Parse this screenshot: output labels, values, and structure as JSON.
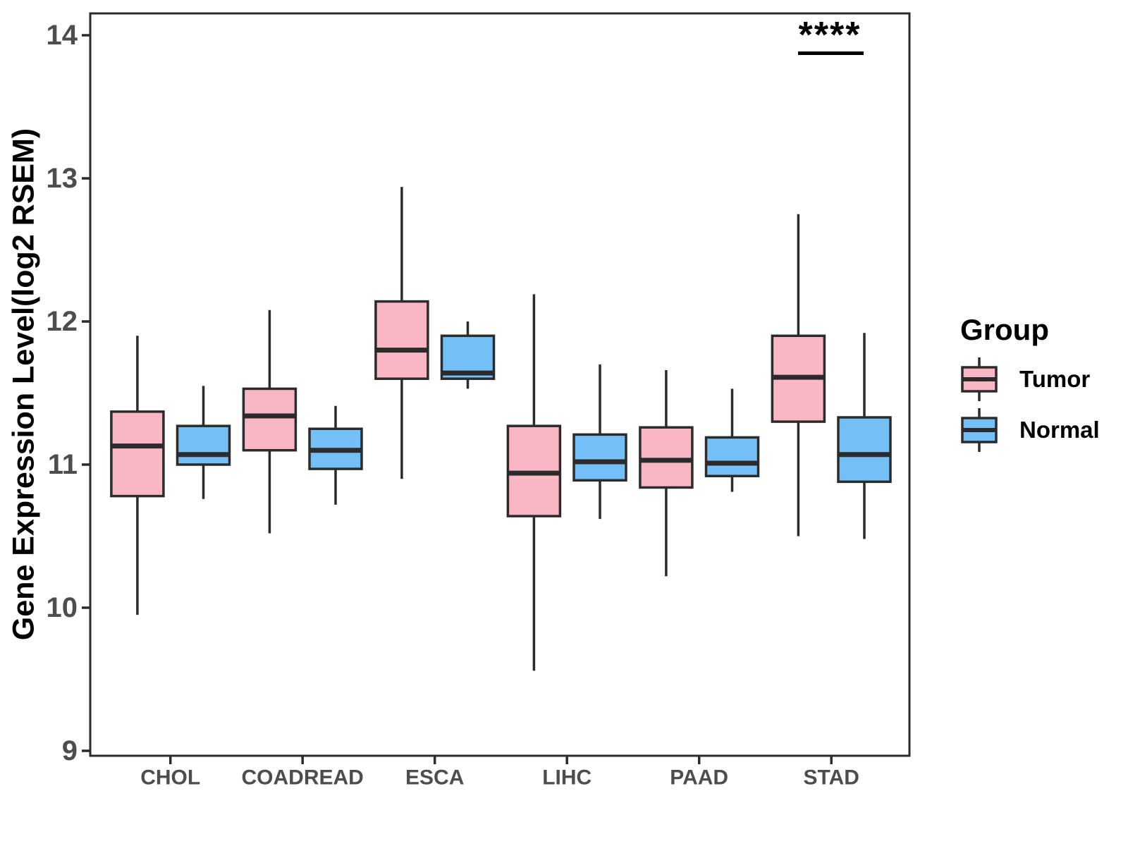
{
  "chart_data": {
    "type": "boxplot",
    "title": "",
    "xlabel": "",
    "ylabel": "Gene Expression Level(log2 RSEM)",
    "ylim": [
      9,
      14.15
    ],
    "yticks": [
      9,
      10,
      11,
      12,
      13,
      14
    ],
    "grid": false,
    "categories": [
      "CHOL",
      "COADREAD",
      "ESCA",
      "LIHC",
      "PAAD",
      "STAD"
    ],
    "legend": {
      "title": "Group",
      "position": "right",
      "entries": [
        "Tumor",
        "Normal"
      ]
    },
    "series": [
      {
        "name": "Tumor",
        "color": "#F9B6C3",
        "boxes": [
          {
            "category": "CHOL",
            "low": 9.95,
            "q1": 10.78,
            "median": 11.13,
            "q3": 11.37,
            "high": 11.9
          },
          {
            "category": "COADREAD",
            "low": 10.52,
            "q1": 11.1,
            "median": 11.34,
            "q3": 11.53,
            "high": 12.08
          },
          {
            "category": "ESCA",
            "low": 10.9,
            "q1": 11.6,
            "median": 11.8,
            "q3": 12.14,
            "high": 12.94
          },
          {
            "category": "LIHC",
            "low": 9.56,
            "q1": 10.64,
            "median": 10.94,
            "q3": 11.27,
            "high": 12.19
          },
          {
            "category": "PAAD",
            "low": 10.22,
            "q1": 10.84,
            "median": 11.03,
            "q3": 11.26,
            "high": 11.66
          },
          {
            "category": "STAD",
            "low": 10.5,
            "q1": 11.3,
            "median": 11.61,
            "q3": 11.9,
            "high": 12.75
          }
        ]
      },
      {
        "name": "Normal",
        "color": "#74BFF5",
        "boxes": [
          {
            "category": "CHOL",
            "low": 10.76,
            "q1": 11.0,
            "median": 11.07,
            "q3": 11.27,
            "high": 11.55
          },
          {
            "category": "COADREAD",
            "low": 10.72,
            "q1": 10.97,
            "median": 11.1,
            "q3": 11.25,
            "high": 11.41
          },
          {
            "category": "ESCA",
            "low": 11.53,
            "q1": 11.6,
            "median": 11.64,
            "q3": 11.9,
            "high": 12.0
          },
          {
            "category": "LIHC",
            "low": 10.62,
            "q1": 10.89,
            "median": 11.02,
            "q3": 11.21,
            "high": 11.7
          },
          {
            "category": "PAAD",
            "low": 10.81,
            "q1": 10.92,
            "median": 11.01,
            "q3": 11.19,
            "high": 11.53
          },
          {
            "category": "STAD",
            "low": 10.48,
            "q1": 10.88,
            "median": 11.07,
            "q3": 11.33,
            "high": 11.92
          }
        ]
      }
    ],
    "annotations": [
      {
        "text": "****",
        "category": "STAD",
        "y_value": 13.97,
        "bar_y_value": 13.88
      }
    ],
    "colors": {
      "tumor_fill": "#F9B6C3",
      "normal_fill": "#74BFF5",
      "box_stroke": "#2B2B2B",
      "axis_text": "#4D4D4D",
      "title_text": "#000000"
    }
  }
}
